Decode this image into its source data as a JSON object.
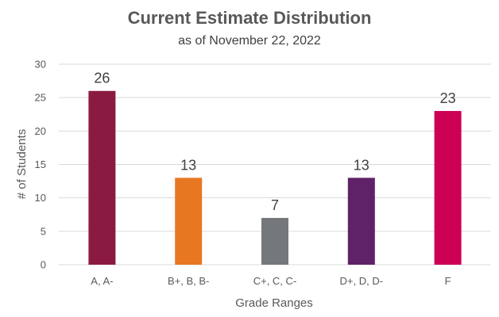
{
  "chart_data": {
    "type": "bar",
    "title": "Current Estimate Distribution",
    "subtitle": "as of November 22, 2022",
    "xlabel": "Grade Ranges",
    "ylabel": "# of Students",
    "categories": [
      "A, A-",
      "B+, B, B-",
      "C+, C, C-",
      "D+, D, D-",
      "F"
    ],
    "values": [
      26,
      13,
      7,
      13,
      23
    ],
    "colors": [
      "#8b1a42",
      "#e87722",
      "#75787b",
      "#5f2167",
      "#cc0055"
    ],
    "ylim": [
      0,
      30
    ],
    "yticks": [
      0,
      5,
      10,
      15,
      20,
      25,
      30
    ],
    "grid": true,
    "legend": "none",
    "data_labels": true
  }
}
